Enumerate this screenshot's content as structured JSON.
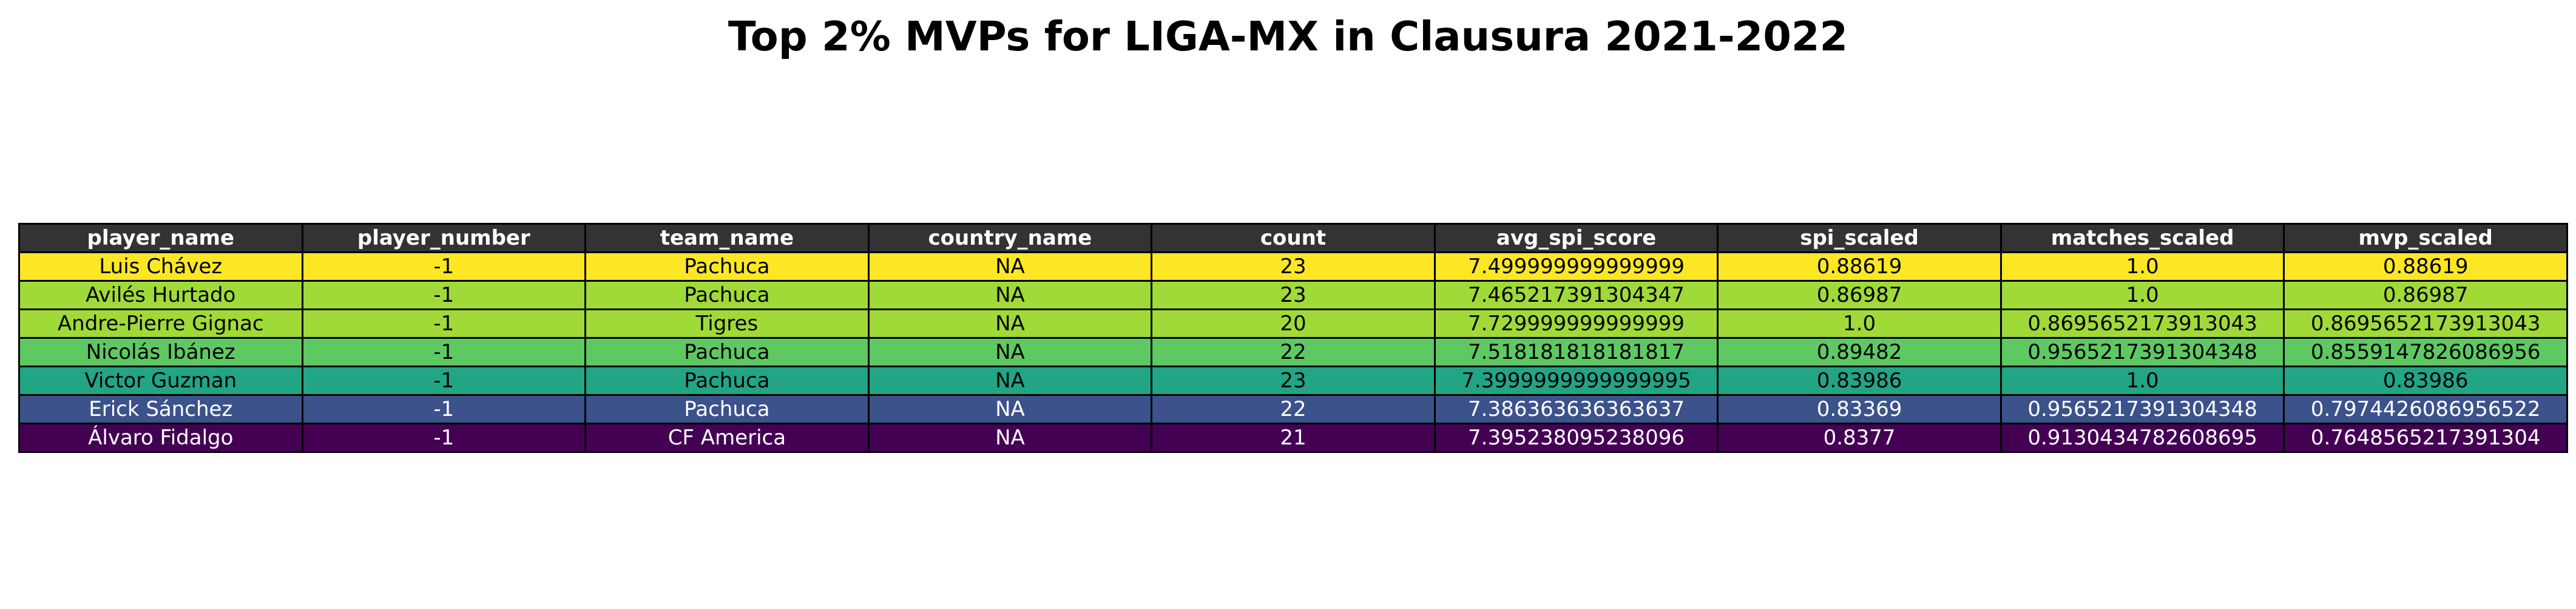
{
  "chart_data": {
    "type": "table",
    "title": "Top 2% MVPs for LIGA-MX in Clausura 2021-2022",
    "columns": [
      "player_name",
      "player_number",
      "team_name",
      "country_name",
      "count",
      "avg_spi_score",
      "spi_scaled",
      "matches_scaled",
      "mvp_scaled"
    ],
    "rows": [
      [
        "Luis Chávez",
        "-1",
        "Pachuca",
        "NA",
        "23",
        "7.499999999999999",
        "0.88619",
        "1.0",
        "0.88619"
      ],
      [
        "Avilés Hurtado",
        "-1",
        "Pachuca",
        "NA",
        "23",
        "7.465217391304347",
        "0.86987",
        "1.0",
        "0.86987"
      ],
      [
        "Andre-Pierre Gignac",
        "-1",
        "Tigres",
        "NA",
        "20",
        "7.729999999999999",
        "1.0",
        "0.8695652173913043",
        "0.8695652173913043"
      ],
      [
        "Nicolás Ibánez",
        "-1",
        "Pachuca",
        "NA",
        "22",
        "7.518181818181817",
        "0.89482",
        "0.9565217391304348",
        "0.8559147826086956"
      ],
      [
        "Victor Guzman",
        "-1",
        "Pachuca",
        "NA",
        "23",
        "7.3999999999999995",
        "0.83986",
        "1.0",
        "0.83986"
      ],
      [
        "Erick Sánchez",
        "-1",
        "Pachuca",
        "NA",
        "22",
        "7.386363636363637",
        "0.83369",
        "0.9565217391304348",
        "0.7974426086956522"
      ],
      [
        "Álvaro Fidalgo",
        "-1",
        "CF America",
        "NA",
        "21",
        "7.395238095238096",
        "0.8377",
        "0.9130434782608695",
        "0.7648565217391304"
      ]
    ],
    "row_colors": [
      "#fde725",
      "#a0da39",
      "#a0da39",
      "#5ec962",
      "#21a585",
      "#3b528b",
      "#440154"
    ],
    "row_text_colors": [
      "#000000",
      "#000000",
      "#000000",
      "#000000",
      "#000000",
      "#ffffff",
      "#ffffff"
    ],
    "header_color": "#333333",
    "header_text_color": "#ffffff"
  }
}
